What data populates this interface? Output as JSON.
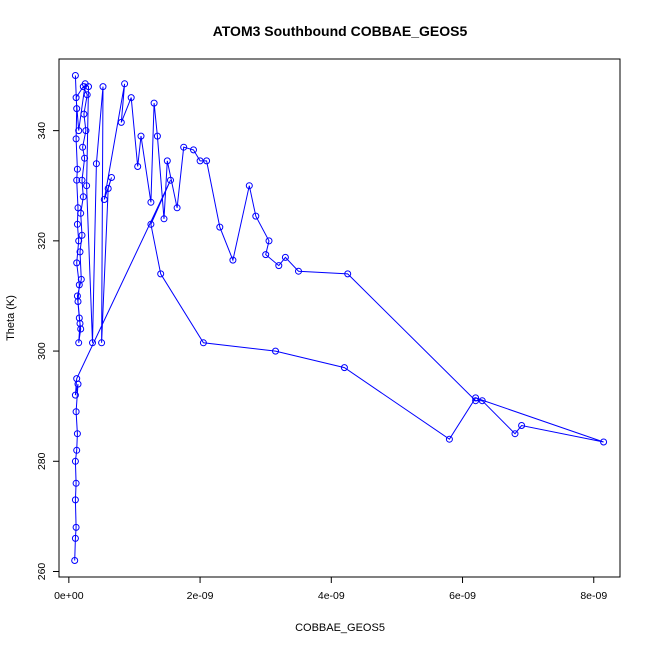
{
  "chart_data": {
    "type": "line",
    "title": "ATOM3 Southbound COBBAE_GEOS5",
    "xlabel": "COBBAE_GEOS5",
    "ylabel": "Theta (K)",
    "xlim": [
      -1.5e-10,
      8.4e-09
    ],
    "ylim": [
      259,
      353
    ],
    "xticks": [
      0,
      2e-09,
      4e-09,
      6e-09,
      8e-09
    ],
    "xtick_labels": [
      "0e+00",
      "2e-09",
      "4e-09",
      "6e-09",
      "8e-09"
    ],
    "yticks": [
      260,
      280,
      300,
      320,
      340
    ],
    "ytick_labels": [
      "260",
      "280",
      "300",
      "320",
      "340"
    ],
    "grid": false,
    "colors": {
      "series": "#0000ff"
    },
    "series": [
      {
        "marker": "open-circle",
        "x": [
          1e-10,
          1.2e-10,
          1.1e-10,
          1.3e-10,
          1.2e-10,
          1.4e-10,
          1.3e-10,
          1.5e-10,
          1.2e-10,
          1.6e-10,
          1.4e-10,
          1.7e-10,
          1.5e-10,
          1.8e-10,
          1.6e-10,
          1.3e-10,
          1.9e-10,
          1.7e-10,
          2e-10,
          1.8e-10,
          2.2e-10,
          2e-10,
          2.4e-10,
          2.1e-10,
          2.6e-10,
          2.3e-10,
          2.8e-10,
          2.2e-10,
          1.1e-10,
          1.5e-10,
          2.5e-10,
          3e-10,
          2.7e-10,
          3.6e-10,
          4.2e-10,
          5.2e-10,
          5e-10,
          6e-10,
          6.5e-10,
          5.4e-10,
          8.5e-10,
          8e-10,
          9.5e-10,
          1.05e-09,
          1.1e-09,
          1.25e-09,
          1.3e-09,
          1.35e-09,
          1.45e-09,
          1.5e-09,
          1.65e-09,
          1.75e-09,
          1.9e-09,
          2e-09,
          2.1e-09,
          2.3e-09,
          2.5e-09,
          2.75e-09,
          2.85e-09,
          3.05e-09,
          3e-09,
          3.2e-09,
          3.3e-09,
          3.5e-09,
          4.25e-09,
          6.2e-09,
          6.3e-09,
          6.8e-09,
          6.9e-09,
          8.15e-09,
          6.2e-09,
          5.8e-09,
          4.2e-09,
          3.15e-09,
          2.05e-09,
          1.4e-09,
          1.25e-09,
          1.55e-09,
          1.2e-10,
          1e-10,
          1.4e-10,
          1.1e-10,
          1.3e-10,
          1.2e-10,
          1e-10,
          1.1e-10,
          1e-10,
          1.1e-10,
          1e-10,
          9e-11
        ],
        "y": [
          350,
          344,
          338.5,
          333,
          331,
          326,
          323,
          320,
          316,
          312,
          309,
          305,
          301.5,
          304,
          306,
          310,
          313,
          318,
          321,
          325,
          328,
          331,
          335,
          337,
          340,
          343,
          346.5,
          348,
          346,
          340,
          348.5,
          348,
          330,
          301.5,
          334,
          348,
          301.5,
          329.5,
          331.5,
          327.5,
          348.5,
          341.5,
          346,
          333.5,
          339,
          327,
          345,
          339,
          324,
          334.5,
          326,
          337,
          336.5,
          334.5,
          334.5,
          322.5,
          316.5,
          330,
          324.5,
          320,
          317.5,
          315.5,
          317,
          314.5,
          314,
          291,
          291,
          285,
          286.5,
          283.5,
          291.5,
          284,
          297,
          300,
          301.5,
          314,
          323,
          331,
          295,
          292,
          294,
          289,
          285,
          282,
          280,
          276,
          273,
          268,
          266,
          262
        ]
      }
    ]
  }
}
